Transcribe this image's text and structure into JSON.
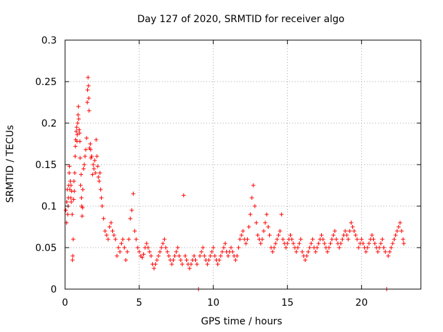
{
  "chart_data": {
    "type": "scatter",
    "title": "Day 127 of 2020, SRMTID for receiver algo",
    "xlabel": "GPS time / hours",
    "ylabel": "SRMTID / TECUs",
    "xlim": [
      0,
      24
    ],
    "ylim": [
      0,
      0.3
    ],
    "x_ticks": [
      0,
      5,
      10,
      15,
      20
    ],
    "x_tick_labels": [
      "0",
      "5",
      "10",
      "15",
      "20"
    ],
    "y_ticks": [
      0,
      0.05,
      0.1,
      0.15,
      0.2,
      0.25,
      0.3
    ],
    "y_tick_labels": [
      "0",
      "0.05",
      "0.1",
      "0.15",
      "0.2",
      "0.25",
      "0.3"
    ],
    "grid": true,
    "marker": "plus",
    "color": "#ff0000",
    "series": [
      {
        "name": "SRMTID",
        "points": [
          [
            0.05,
            0.095
          ],
          [
            0.1,
            0.08
          ],
          [
            0.12,
            0.105
          ],
          [
            0.15,
            0.12
          ],
          [
            0.18,
            0.09
          ],
          [
            0.2,
            0.1
          ],
          [
            0.22,
            0.11
          ],
          [
            0.25,
            0.125
          ],
          [
            0.28,
            0.14
          ],
          [
            0.3,
            0.148
          ],
          [
            0.32,
            0.12
          ],
          [
            0.35,
            0.13
          ],
          [
            0.38,
            0.11
          ],
          [
            0.4,
            0.125
          ],
          [
            0.42,
            0.105
          ],
          [
            0.45,
            0.118
          ],
          [
            0.48,
            0.09
          ],
          [
            0.5,
            0.035
          ],
          [
            0.52,
            0.04
          ],
          [
            0.55,
            0.06
          ],
          [
            0.58,
            0.108
          ],
          [
            0.6,
            0.13
          ],
          [
            0.62,
            0.118
          ],
          [
            0.65,
            0.14
          ],
          [
            0.68,
            0.16
          ],
          [
            0.7,
            0.172
          ],
          [
            0.72,
            0.18
          ],
          [
            0.75,
            0.19
          ],
          [
            0.78,
            0.195
          ],
          [
            0.8,
            0.178
          ],
          [
            0.82,
            0.186
          ],
          [
            0.85,
            0.2
          ],
          [
            0.88,
            0.21
          ],
          [
            0.9,
            0.22
          ],
          [
            0.92,
            0.205
          ],
          [
            0.95,
            0.192
          ],
          [
            0.98,
            0.188
          ],
          [
            1.0,
            0.178
          ],
          [
            1.02,
            0.158
          ],
          [
            1.05,
            0.125
          ],
          [
            1.08,
            0.138
          ],
          [
            1.1,
            0.11
          ],
          [
            1.12,
            0.1
          ],
          [
            1.15,
            0.088
          ],
          [
            1.18,
            0.098
          ],
          [
            1.2,
            0.12
          ],
          [
            1.25,
            0.145
          ],
          [
            1.3,
            0.15
          ],
          [
            1.35,
            0.16
          ],
          [
            1.4,
            0.168
          ],
          [
            1.45,
            0.182
          ],
          [
            1.5,
            0.225
          ],
          [
            1.52,
            0.24
          ],
          [
            1.55,
            0.255
          ],
          [
            1.58,
            0.245
          ],
          [
            1.6,
            0.23
          ],
          [
            1.62,
            0.215
          ],
          [
            1.65,
            0.17
          ],
          [
            1.7,
            0.175
          ],
          [
            1.72,
            0.168
          ],
          [
            1.75,
            0.158
          ],
          [
            1.8,
            0.16
          ],
          [
            1.85,
            0.138
          ],
          [
            1.9,
            0.15
          ],
          [
            1.95,
            0.145
          ],
          [
            2.0,
            0.155
          ],
          [
            2.05,
            0.14
          ],
          [
            2.1,
            0.18
          ],
          [
            2.15,
            0.16
          ],
          [
            2.2,
            0.148
          ],
          [
            2.25,
            0.135
          ],
          [
            2.3,
            0.13
          ],
          [
            2.35,
            0.14
          ],
          [
            2.4,
            0.12
          ],
          [
            2.45,
            0.11
          ],
          [
            2.5,
            0.1
          ],
          [
            2.6,
            0.085
          ],
          [
            2.7,
            0.07
          ],
          [
            2.8,
            0.065
          ],
          [
            2.9,
            0.06
          ],
          [
            3.0,
            0.075
          ],
          [
            3.1,
            0.08
          ],
          [
            3.2,
            0.07
          ],
          [
            3.3,
            0.065
          ],
          [
            3.4,
            0.06
          ],
          [
            3.5,
            0.04
          ],
          [
            3.6,
            0.05
          ],
          [
            3.7,
            0.045
          ],
          [
            3.8,
            0.055
          ],
          [
            3.9,
            0.06
          ],
          [
            4.0,
            0.05
          ],
          [
            4.1,
            0.035
          ],
          [
            4.2,
            0.045
          ],
          [
            4.3,
            0.06
          ],
          [
            4.4,
            0.085
          ],
          [
            4.5,
            0.095
          ],
          [
            4.6,
            0.115
          ],
          [
            4.7,
            0.07
          ],
          [
            4.8,
            0.06
          ],
          [
            4.9,
            0.05
          ],
          [
            5.0,
            0.045
          ],
          [
            5.1,
            0.04
          ],
          [
            5.2,
            0.038
          ],
          [
            5.3,
            0.042
          ],
          [
            5.4,
            0.05
          ],
          [
            5.5,
            0.055
          ],
          [
            5.6,
            0.05
          ],
          [
            5.7,
            0.045
          ],
          [
            5.8,
            0.04
          ],
          [
            5.9,
            0.03
          ],
          [
            6.0,
            0.025
          ],
          [
            6.1,
            0.03
          ],
          [
            6.2,
            0.035
          ],
          [
            6.3,
            0.04
          ],
          [
            6.4,
            0.045
          ],
          [
            6.5,
            0.05
          ],
          [
            6.6,
            0.055
          ],
          [
            6.7,
            0.06
          ],
          [
            6.8,
            0.05
          ],
          [
            6.9,
            0.045
          ],
          [
            7.0,
            0.04
          ],
          [
            7.1,
            0.035
          ],
          [
            7.2,
            0.03
          ],
          [
            7.3,
            0.035
          ],
          [
            7.4,
            0.04
          ],
          [
            7.5,
            0.045
          ],
          [
            7.6,
            0.05
          ],
          [
            7.7,
            0.04
          ],
          [
            7.8,
            0.035
          ],
          [
            7.9,
            0.03
          ],
          [
            8.0,
            0.113
          ],
          [
            8.1,
            0.04
          ],
          [
            8.2,
            0.035
          ],
          [
            8.3,
            0.03
          ],
          [
            8.4,
            0.025
          ],
          [
            8.5,
            0.03
          ],
          [
            8.6,
            0.035
          ],
          [
            8.7,
            0.04
          ],
          [
            8.8,
            0.035
          ],
          [
            8.9,
            0.03
          ],
          [
            9.0,
            0.0
          ],
          [
            9.1,
            0.04
          ],
          [
            9.2,
            0.045
          ],
          [
            9.3,
            0.05
          ],
          [
            9.4,
            0.04
          ],
          [
            9.5,
            0.035
          ],
          [
            9.6,
            0.03
          ],
          [
            9.7,
            0.035
          ],
          [
            9.8,
            0.04
          ],
          [
            9.9,
            0.045
          ],
          [
            10.0,
            0.05
          ],
          [
            10.1,
            0.04
          ],
          [
            10.2,
            0.035
          ],
          [
            10.3,
            0.03
          ],
          [
            10.4,
            0.035
          ],
          [
            10.5,
            0.04
          ],
          [
            10.6,
            0.045
          ],
          [
            10.7,
            0.05
          ],
          [
            10.8,
            0.055
          ],
          [
            10.9,
            0.045
          ],
          [
            11.0,
            0.04
          ],
          [
            11.1,
            0.045
          ],
          [
            11.2,
            0.05
          ],
          [
            11.3,
            0.045
          ],
          [
            11.4,
            0.04
          ],
          [
            11.5,
            0.035
          ],
          [
            11.6,
            0.04
          ],
          [
            11.7,
            0.05
          ],
          [
            11.8,
            0.06
          ],
          [
            11.9,
            0.065
          ],
          [
            12.0,
            0.07
          ],
          [
            12.1,
            0.06
          ],
          [
            12.2,
            0.055
          ],
          [
            12.3,
            0.06
          ],
          [
            12.4,
            0.075
          ],
          [
            12.5,
            0.09
          ],
          [
            12.6,
            0.11
          ],
          [
            12.7,
            0.125
          ],
          [
            12.8,
            0.1
          ],
          [
            12.9,
            0.08
          ],
          [
            13.0,
            0.065
          ],
          [
            13.1,
            0.06
          ],
          [
            13.2,
            0.055
          ],
          [
            13.3,
            0.06
          ],
          [
            13.4,
            0.07
          ],
          [
            13.5,
            0.08
          ],
          [
            13.6,
            0.09
          ],
          [
            13.7,
            0.075
          ],
          [
            13.8,
            0.065
          ],
          [
            13.9,
            0.05
          ],
          [
            14.0,
            0.045
          ],
          [
            14.1,
            0.05
          ],
          [
            14.2,
            0.055
          ],
          [
            14.3,
            0.06
          ],
          [
            14.4,
            0.065
          ],
          [
            14.5,
            0.07
          ],
          [
            14.6,
            0.09
          ],
          [
            14.7,
            0.06
          ],
          [
            14.8,
            0.055
          ],
          [
            14.9,
            0.05
          ],
          [
            15.0,
            0.055
          ],
          [
            15.1,
            0.06
          ],
          [
            15.2,
            0.065
          ],
          [
            15.3,
            0.06
          ],
          [
            15.4,
            0.055
          ],
          [
            15.5,
            0.05
          ],
          [
            15.6,
            0.045
          ],
          [
            15.7,
            0.05
          ],
          [
            15.8,
            0.055
          ],
          [
            15.9,
            0.06
          ],
          [
            16.0,
            0.045
          ],
          [
            16.1,
            0.04
          ],
          [
            16.2,
            0.035
          ],
          [
            16.3,
            0.04
          ],
          [
            16.4,
            0.045
          ],
          [
            16.5,
            0.05
          ],
          [
            16.6,
            0.055
          ],
          [
            16.7,
            0.06
          ],
          [
            16.8,
            0.05
          ],
          [
            16.9,
            0.045
          ],
          [
            17.0,
            0.05
          ],
          [
            17.1,
            0.055
          ],
          [
            17.2,
            0.06
          ],
          [
            17.3,
            0.065
          ],
          [
            17.4,
            0.06
          ],
          [
            17.5,
            0.055
          ],
          [
            17.6,
            0.05
          ],
          [
            17.7,
            0.045
          ],
          [
            17.8,
            0.05
          ],
          [
            17.9,
            0.055
          ],
          [
            18.0,
            0.06
          ],
          [
            18.1,
            0.065
          ],
          [
            18.2,
            0.07
          ],
          [
            18.3,
            0.06
          ],
          [
            18.4,
            0.055
          ],
          [
            18.5,
            0.05
          ],
          [
            18.6,
            0.055
          ],
          [
            18.7,
            0.06
          ],
          [
            18.8,
            0.065
          ],
          [
            18.9,
            0.07
          ],
          [
            19.0,
            0.065
          ],
          [
            19.1,
            0.06
          ],
          [
            19.2,
            0.07
          ],
          [
            19.3,
            0.08
          ],
          [
            19.4,
            0.075
          ],
          [
            19.5,
            0.07
          ],
          [
            19.6,
            0.065
          ],
          [
            19.7,
            0.06
          ],
          [
            19.8,
            0.05
          ],
          [
            19.9,
            0.055
          ],
          [
            20.0,
            0.06
          ],
          [
            20.1,
            0.055
          ],
          [
            20.2,
            0.05
          ],
          [
            20.3,
            0.045
          ],
          [
            20.4,
            0.05
          ],
          [
            20.5,
            0.055
          ],
          [
            20.6,
            0.06
          ],
          [
            20.7,
            0.065
          ],
          [
            20.8,
            0.06
          ],
          [
            20.9,
            0.055
          ],
          [
            21.0,
            0.05
          ],
          [
            21.1,
            0.045
          ],
          [
            21.2,
            0.05
          ],
          [
            21.3,
            0.055
          ],
          [
            21.4,
            0.06
          ],
          [
            21.5,
            0.05
          ],
          [
            21.6,
            0.045
          ],
          [
            21.7,
            0.0
          ],
          [
            21.8,
            0.04
          ],
          [
            21.9,
            0.045
          ],
          [
            22.0,
            0.05
          ],
          [
            22.1,
            0.055
          ],
          [
            22.2,
            0.06
          ],
          [
            22.3,
            0.065
          ],
          [
            22.4,
            0.07
          ],
          [
            22.5,
            0.075
          ],
          [
            22.6,
            0.08
          ],
          [
            22.7,
            0.07
          ],
          [
            22.8,
            0.06
          ],
          [
            22.85,
            0.055
          ]
        ]
      }
    ]
  }
}
